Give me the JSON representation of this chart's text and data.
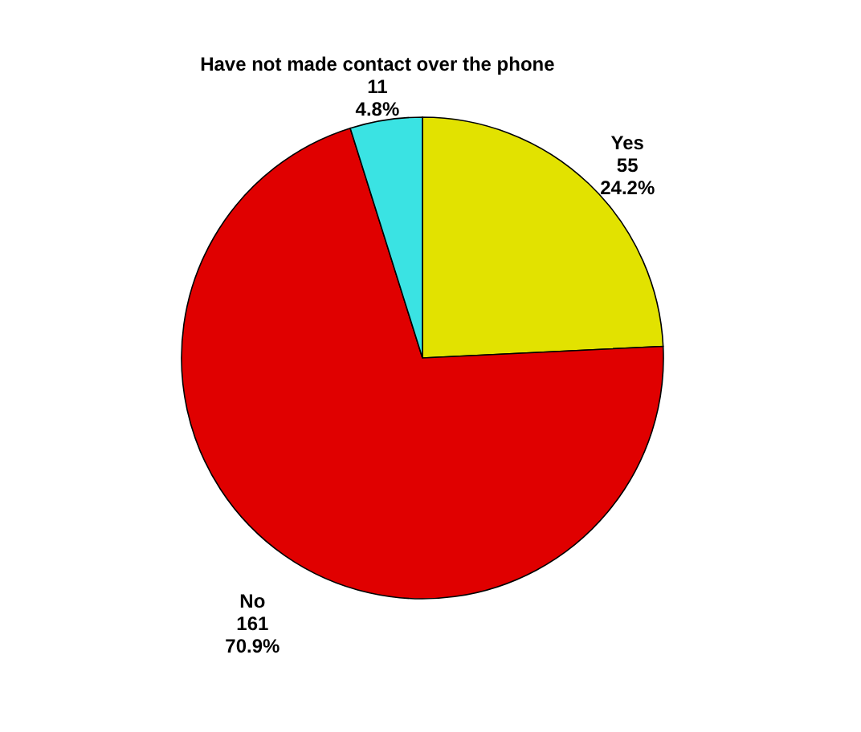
{
  "chart_data": {
    "type": "pie",
    "categories": [
      "Yes",
      "No",
      "Have not made contact over the phone"
    ],
    "values": [
      55,
      161,
      11
    ],
    "colors": [
      "#e2e200",
      "#e00000",
      "#3ae3e3"
    ],
    "value_labels": [
      "55\n24.2%",
      "161\n70.9%",
      "11\n4.8%"
    ],
    "legend": false
  }
}
